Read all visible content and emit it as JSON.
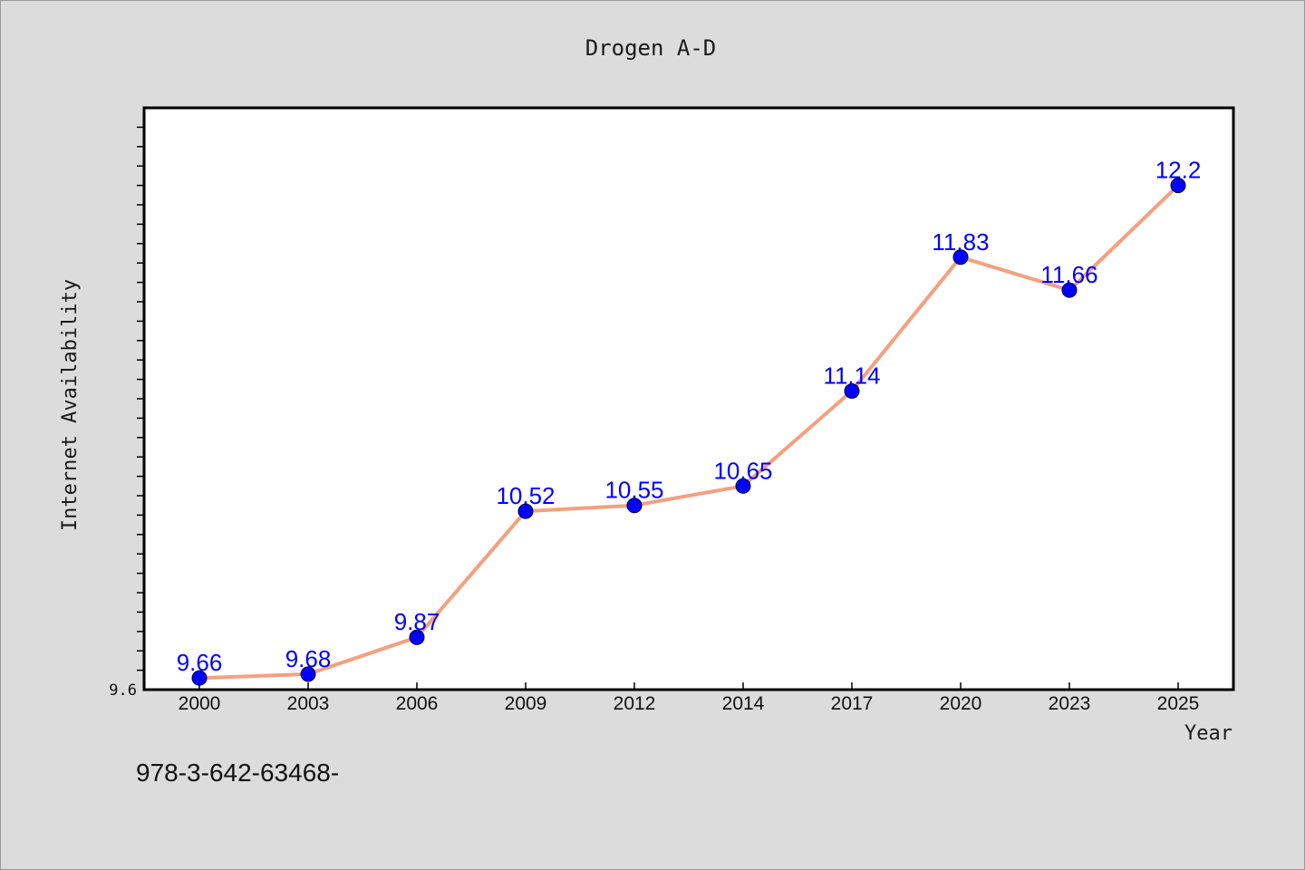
{
  "chart_data": {
    "type": "line",
    "title": "Drogen A-D",
    "xlabel": "Year",
    "ylabel": "Internet Availability",
    "categories": [
      "2000",
      "2003",
      "2006",
      "2009",
      "2012",
      "2014",
      "2017",
      "2020",
      "2023",
      "2025"
    ],
    "series": [
      {
        "values": [
          9.66,
          9.68,
          9.87,
          10.52,
          10.55,
          10.65,
          11.14,
          11.83,
          11.66,
          12.2
        ],
        "data_labels": [
          "9.66",
          "9.68",
          "9.87",
          "10.52",
          "10.55",
          "10.65",
          "11.14",
          "11.83",
          "11.66",
          "12.2"
        ],
        "line_color": "#f4a07f",
        "marker_color": "#0000ff"
      }
    ],
    "ylim": [
      9.6,
      12.6
    ],
    "y_tick_labels": [
      "9.6"
    ],
    "minor_y_tick_step": 0.1,
    "grid": false,
    "legend": "none"
  },
  "footer": {
    "text": "978-3-642-63468-"
  },
  "colors": {
    "background": "#dcdcdc",
    "plot_background": "#ffffff",
    "data_label": "#0000ff"
  }
}
